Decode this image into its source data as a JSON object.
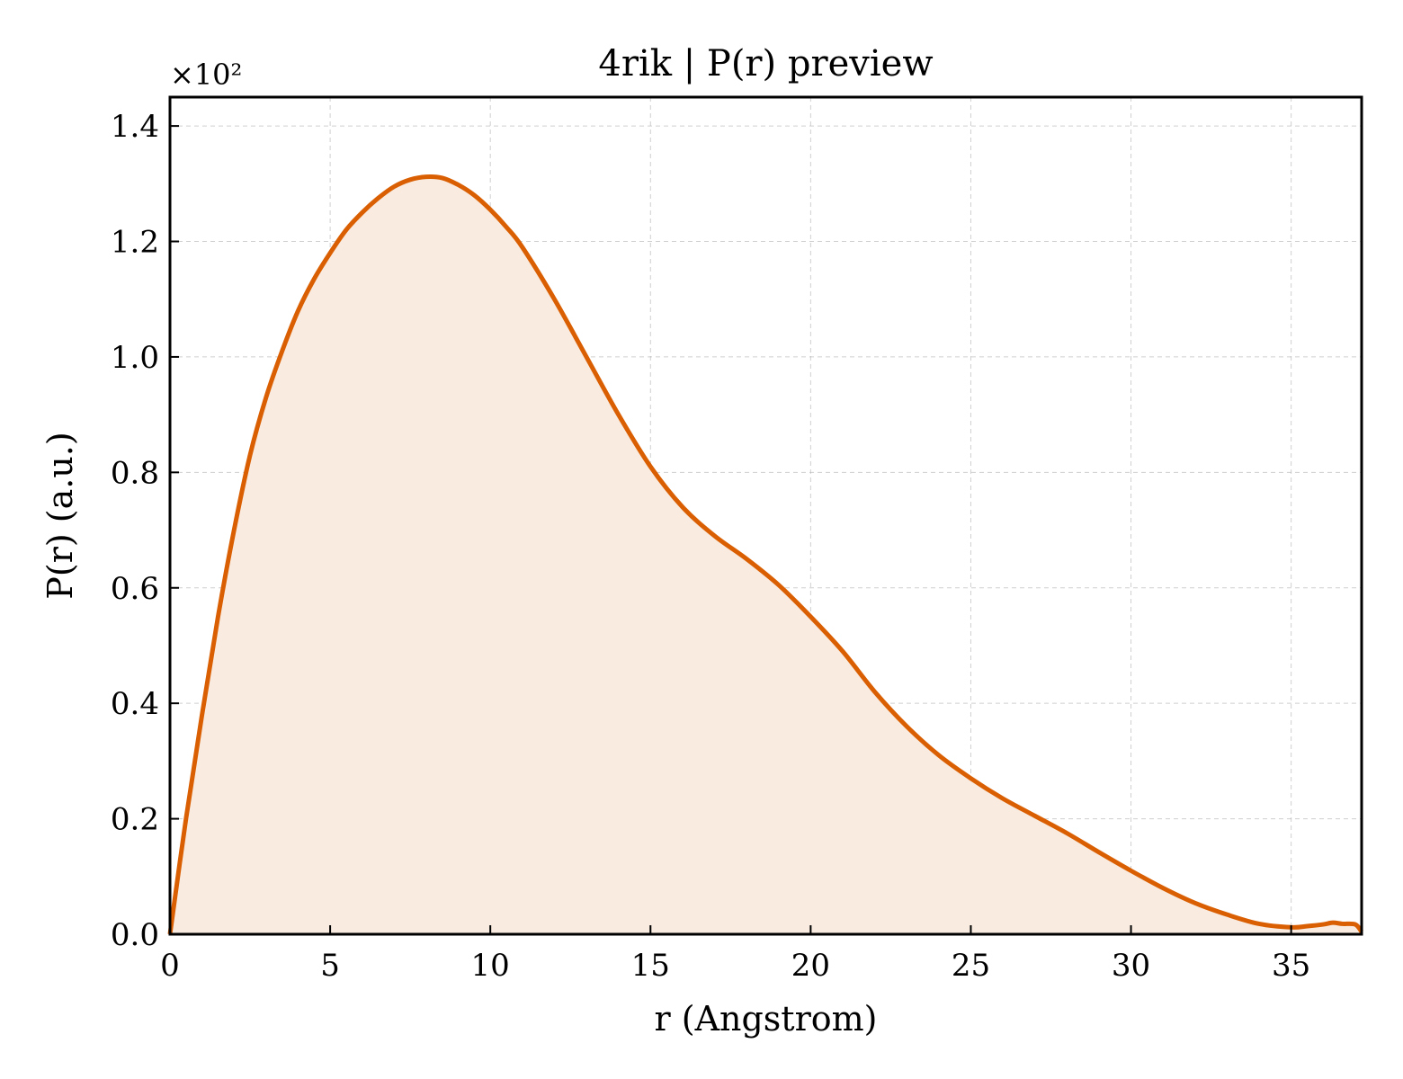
{
  "chart_data": {
    "type": "area",
    "title": "4rik | P(r) preview",
    "xlabel": "r (Angstrom)",
    "ylabel": "P(r) (a.u.)",
    "y_offset_label": "×10²",
    "xlim": [
      0,
      37.2
    ],
    "ylim": [
      0,
      1.45
    ],
    "x_ticks": [
      0,
      5,
      10,
      15,
      20,
      25,
      30,
      35
    ],
    "y_ticks": [
      0.0,
      0.2,
      0.4,
      0.6,
      0.8,
      1.0,
      1.2,
      1.4
    ],
    "x_tick_labels": [
      "0",
      "5",
      "10",
      "15",
      "20",
      "25",
      "30",
      "35"
    ],
    "y_tick_labels": [
      "0.0",
      "0.2",
      "0.4",
      "0.6",
      "0.8",
      "1.0",
      "1.2",
      "1.4"
    ],
    "grid": true,
    "line_color": "#d95f02",
    "fill_color": "#f9ebe0",
    "series": [
      {
        "x": [
          0,
          0.5,
          1,
          1.5,
          2,
          2.5,
          3,
          3.5,
          4,
          4.5,
          5,
          5.5,
          6,
          6.5,
          7,
          7.5,
          8,
          8.5,
          9,
          9.5,
          10,
          10.5,
          11,
          12,
          13,
          14,
          15,
          16,
          17,
          18,
          19,
          20,
          21,
          22,
          23,
          24,
          25,
          26,
          27,
          28,
          29,
          30,
          31,
          32,
          33,
          34,
          35,
          35.5,
          36,
          36.3,
          36.6,
          37,
          37.2
        ],
        "y": [
          0.0,
          0.2,
          0.38,
          0.55,
          0.7,
          0.83,
          0.93,
          1.01,
          1.08,
          1.135,
          1.18,
          1.22,
          1.25,
          1.275,
          1.295,
          1.307,
          1.312,
          1.31,
          1.298,
          1.28,
          1.255,
          1.225,
          1.19,
          1.1,
          1.0,
          0.9,
          0.81,
          0.74,
          0.69,
          0.65,
          0.605,
          0.55,
          0.49,
          0.42,
          0.36,
          0.31,
          0.27,
          0.235,
          0.205,
          0.175,
          0.142,
          0.11,
          0.08,
          0.054,
          0.034,
          0.018,
          0.012,
          0.014,
          0.017,
          0.02,
          0.018,
          0.017,
          0.004
        ]
      }
    ]
  }
}
